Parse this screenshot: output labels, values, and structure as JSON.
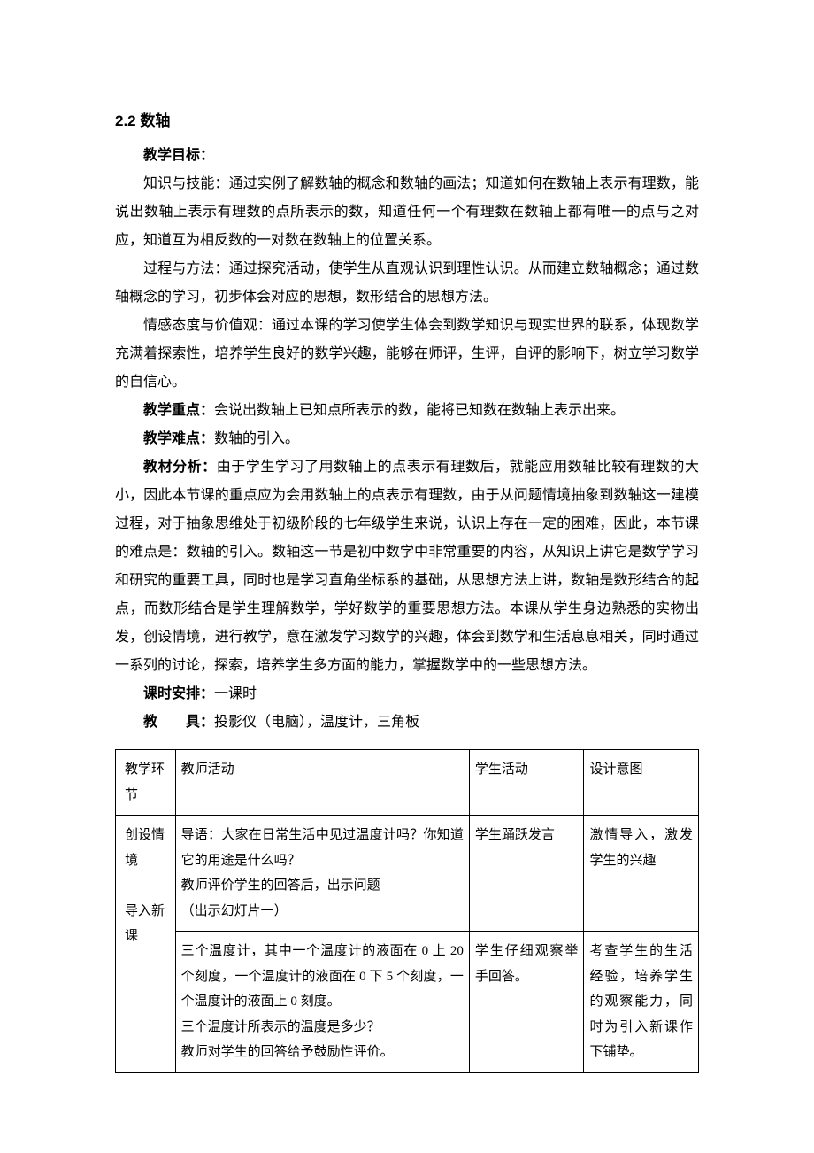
{
  "heading": "2.2 数轴",
  "goals_label": "教学目标：",
  "para1": "知识与技能：通过实例了解数轴的概念和数轴的画法；知道如何在数轴上表示有理数，能说出数轴上表示有理数的点所表示的数，知道任何一个有理数在数轴上都有唯一的点与之对应，知道互为相反数的一对数在数轴上的位置关系。",
  "para2": "过程与方法：通过探究活动，使学生从直观认识到理性认识。从而建立数轴概念；通过数轴概念的学习，初步体会对应的思想，数形结合的思想方法。",
  "para3": "情感态度与价值观：通过本课的学习使学生体会到数学知识与现实世界的联系，体现数学充满着探索性，培养学生良好的数学兴趣，能够在师评，生评，自评的影响下，树立学习数学的自信心。",
  "focus_label": "教学重点：",
  "focus_text": "会说出数轴上已知点所表示的数，能将已知数在数轴上表示出来。",
  "difficulty_label": "教学难点：",
  "difficulty_text": "数轴的引入。",
  "analysis_label": "教材分析：",
  "analysis_text": "由于学生学习了用数轴上的点表示有理数后，就能应用数轴比较有理数的大小，因此本节课的重点应为会用数轴上的点表示有理数，由于从问题情境抽象到数轴这一建模过程，对于抽象思维处于初级阶段的七年级学生来说，认识上存在一定的困难，因此，本节课的难点是：数轴的引入。数轴这一节是初中数学中非常重要的内容，从知识上讲它是数学学习和研究的重要工具，同时也是学习直角坐标系的基础，从思想方法上讲，数轴是数形结合的起点，而数形结合是学生理解数学，学好数学的重要思想方法。本课从学生身边熟悉的实物出发，创设情境，进行教学，意在激发学习数学的兴趣，体会到数学和生活息息相关，同时通过一系列的讨论，探索，培养学生多方面的能力，掌握数学中的一些思想方法。",
  "schedule_label": "课时安排：",
  "schedule_text": "一课时",
  "tools_label_a": "教",
  "tools_label_b": "具：",
  "tools_text": "投影仪（电脑），温度计，三角板",
  "table": {
    "header": {
      "c1": "教学环节",
      "c2": "教师活动",
      "c3": "学生活动",
      "c4": "设计意图"
    },
    "row1": {
      "c1": "创设情境\n\n导入新课",
      "c2a": "导语：大家在日常生活中见过温度计吗？你知道它的用途是什么吗？\n教师评价学生的回答后，出示问题\n（出示幻灯片一）",
      "c2b": "三个温度计，其中一个温度计的液面在 0 上 20 个刻度，一个温度计的液面在 0 下 5 个刻度，一个温度计的液面上 0 刻度。\n三个温度计所表示的温度是多少？\n教师对学生的回答给予鼓励性评价。",
      "c3a": "学生踊跃发言",
      "c3b": "学生仔细观察举手回答。",
      "c4a": "激情导入，激发学生的兴趣",
      "c4b": "考查学生的生活经验，培养学生的观察能力，同时为引入新课作下铺垫。"
    }
  }
}
